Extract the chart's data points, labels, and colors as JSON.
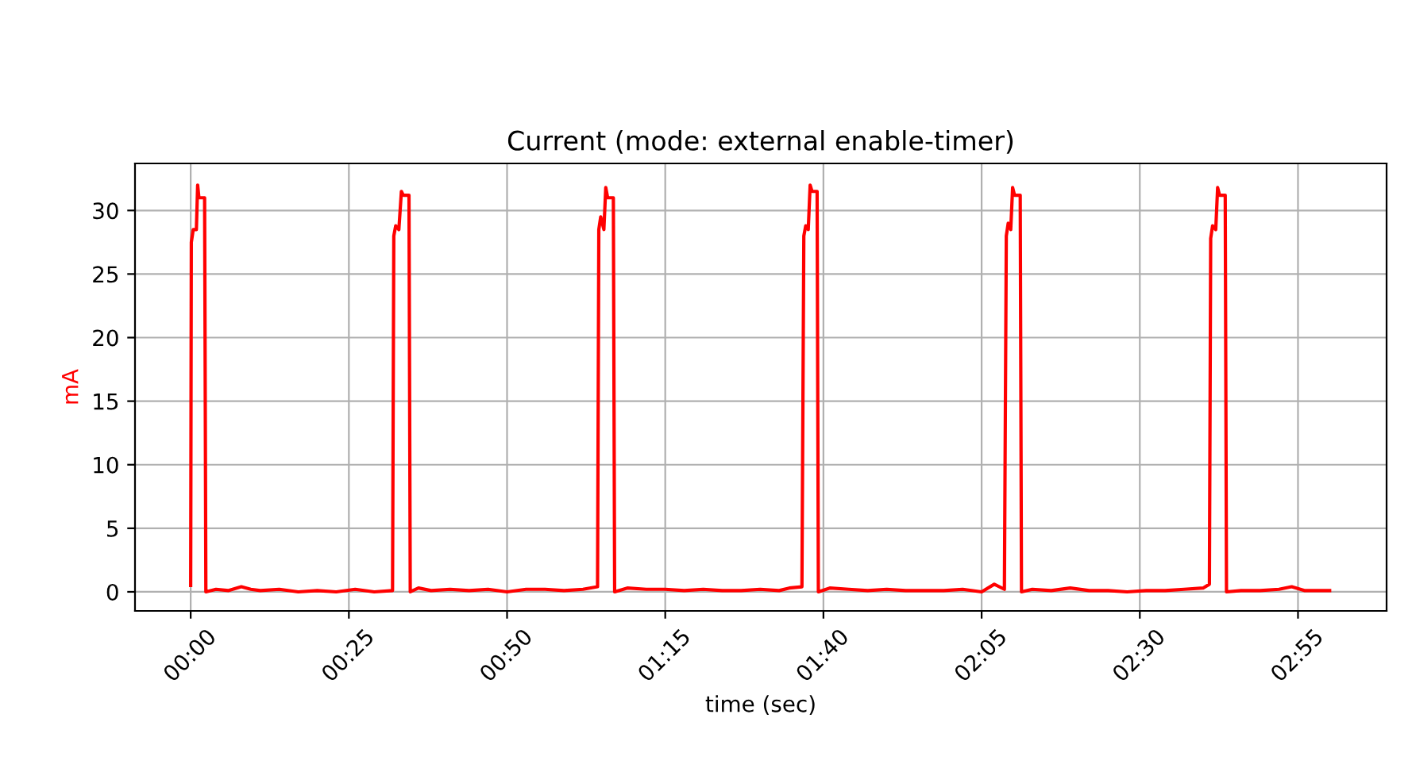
{
  "chart_data": {
    "type": "line",
    "title": "Current (mode: external enable-timer)",
    "xlabel": "time (sec)",
    "ylabel": "mA",
    "grid": true,
    "legend": false,
    "marker": "none",
    "line_style": "solid",
    "xlim": [
      -8.8,
      189
    ],
    "ylim": [
      -1.5,
      33.7
    ],
    "xticks": [
      {
        "value": 0,
        "label": "00:00"
      },
      {
        "value": 25,
        "label": "00:25"
      },
      {
        "value": 50,
        "label": "00:50"
      },
      {
        "value": 75,
        "label": "01:15"
      },
      {
        "value": 100,
        "label": "01:40"
      },
      {
        "value": 125,
        "label": "02:05"
      },
      {
        "value": 150,
        "label": "02:30"
      },
      {
        "value": 175,
        "label": "02:55"
      }
    ],
    "yticks": [
      0,
      5,
      10,
      15,
      20,
      25,
      30
    ],
    "series": [
      {
        "color": "#ff0000",
        "x": [
          0,
          0.1,
          0.4,
          0.9,
          1.1,
          1.3,
          1.6,
          2.2,
          2.4,
          4,
          6,
          8,
          9.5,
          11,
          14,
          17,
          20,
          23,
          26,
          29,
          31.9,
          32.1,
          32.4,
          32.9,
          33.3,
          33.6,
          34.5,
          34.7,
          36,
          38,
          41,
          44,
          47,
          50,
          53,
          56,
          59,
          62,
          64.3,
          64.5,
          64.8,
          65.3,
          65.6,
          65.9,
          66.8,
          67,
          69,
          72,
          75,
          78,
          81,
          84,
          87,
          90,
          93,
          94.6,
          96.6,
          96.9,
          97.2,
          97.6,
          97.9,
          98.2,
          99,
          99.2,
          101,
          104,
          107,
          110,
          113,
          116,
          119,
          122,
          125,
          127,
          128.6,
          128.9,
          129.2,
          129.6,
          129.9,
          130.2,
          131.1,
          131.3,
          133,
          136,
          139,
          142,
          145,
          148,
          151,
          154,
          157,
          160,
          161,
          161.2,
          161.5,
          162,
          162.3,
          162.6,
          163.5,
          163.7,
          166,
          169,
          172,
          174,
          176,
          178,
          180
        ],
        "values": [
          0.5,
          27.5,
          28.5,
          28.5,
          32,
          31,
          31,
          31,
          0,
          0.2,
          0.1,
          0.4,
          0.2,
          0.1,
          0.2,
          0,
          0.1,
          0,
          0.2,
          0,
          0.1,
          28,
          28.8,
          28.5,
          31.5,
          31.2,
          31.2,
          0,
          0.3,
          0.1,
          0.2,
          0.1,
          0.2,
          0,
          0.2,
          0.2,
          0.1,
          0.2,
          0.4,
          28.5,
          29.5,
          28.5,
          31.8,
          31,
          31,
          0,
          0.3,
          0.2,
          0.2,
          0.1,
          0.2,
          0.1,
          0.1,
          0.2,
          0.1,
          0.3,
          0.4,
          28,
          28.8,
          28.5,
          32,
          31.5,
          31.5,
          0,
          0.3,
          0.2,
          0.1,
          0.2,
          0.1,
          0.1,
          0.1,
          0.2,
          0,
          0.6,
          0.2,
          28,
          29,
          28.5,
          31.8,
          31.2,
          31.2,
          0,
          0.2,
          0.1,
          0.3,
          0.1,
          0.1,
          0,
          0.1,
          0.1,
          0.2,
          0.3,
          0.6,
          27.8,
          28.8,
          28.5,
          31.8,
          31.2,
          31.2,
          0,
          0.1,
          0.1,
          0.2,
          0.4,
          0.1,
          0.1,
          0.1
        ]
      }
    ]
  }
}
